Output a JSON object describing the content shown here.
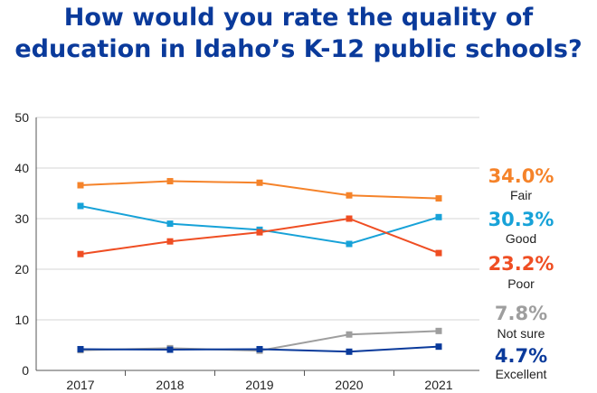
{
  "chart_data": {
    "type": "line",
    "title_lines": [
      "How would you rate the quality of",
      "education in Idaho’s K-12 public schools?"
    ],
    "x": [
      "2017",
      "2018",
      "2019",
      "2020",
      "2021"
    ],
    "ylim": [
      0,
      50
    ],
    "yticks": [
      0,
      10,
      20,
      30,
      40,
      50
    ],
    "grid": "horizontal",
    "legend": "end labels at right",
    "series": [
      {
        "key": "fair",
        "name": "Fair",
        "end_label": "34.0%",
        "color": "#f5832a",
        "values": [
          36.6,
          37.4,
          37.1,
          34.6,
          34.0
        ]
      },
      {
        "key": "good",
        "name": "Good",
        "end_label": "30.3%",
        "color": "#17a2d8",
        "values": [
          32.5,
          29.0,
          27.8,
          25.0,
          30.3
        ]
      },
      {
        "key": "poor",
        "name": "Poor",
        "end_label": "23.2%",
        "color": "#ef4e23",
        "values": [
          23.0,
          25.5,
          27.3,
          30.0,
          23.2
        ]
      },
      {
        "key": "notsure",
        "name": "Not sure",
        "end_label": "7.8%",
        "color": "#9e9e9e",
        "values": [
          4.0,
          4.4,
          3.9,
          7.1,
          7.8
        ]
      },
      {
        "key": "excellent",
        "name": "Excellent",
        "end_label": "4.7%",
        "color": "#0a3a9b",
        "values": [
          4.2,
          4.1,
          4.2,
          3.7,
          4.7
        ]
      }
    ]
  }
}
